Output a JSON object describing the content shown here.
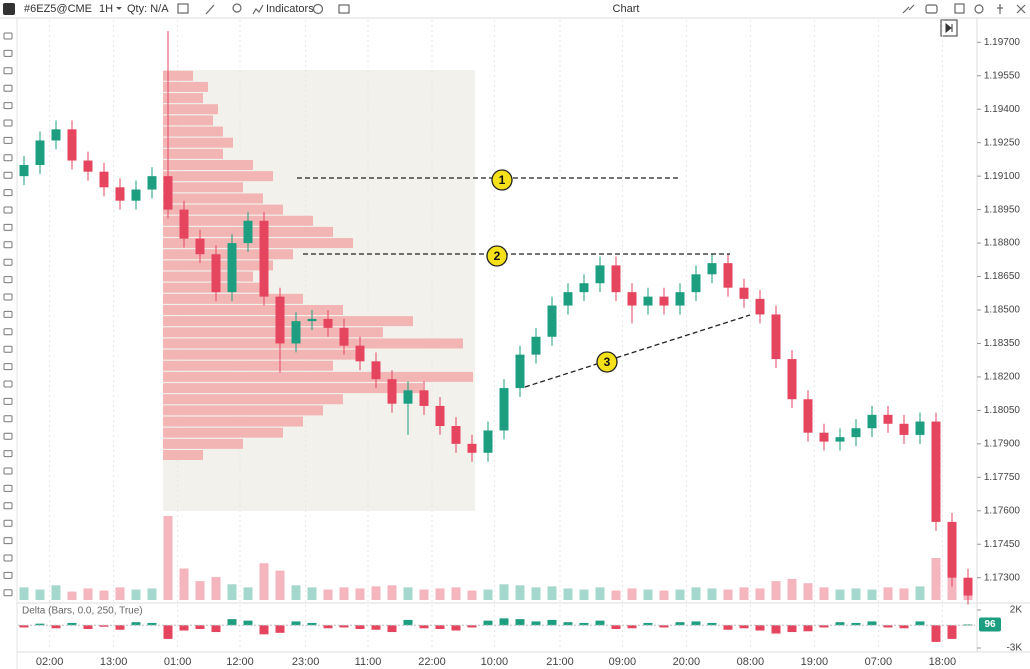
{
  "toolbar": {
    "symbol": "#6EZ5@CME",
    "interval": "1H",
    "qty": "Qty: N/A",
    "indicators": "Indicators",
    "title": "Chart"
  },
  "chart_data": {
    "type": "candlestick",
    "open": [
      1.191,
      1.1915,
      1.1926,
      1.1931,
      1.1917,
      1.1912,
      1.1905,
      1.1899,
      1.1904,
      1.191,
      1.1895,
      1.1882,
      1.1875,
      1.1858,
      1.188,
      1.189,
      1.1856,
      1.1835,
      1.1845,
      1.1846,
      1.1842,
      1.1834,
      1.1827,
      1.1819,
      1.1808,
      1.1814,
      1.1807,
      1.1798,
      1.179,
      1.1786,
      1.1796,
      1.1815,
      1.183,
      1.1838,
      1.1852,
      1.1858,
      1.1862,
      1.187,
      1.1858,
      1.1852,
      1.1856,
      1.1852,
      1.1858,
      1.1866,
      1.1871,
      1.186,
      1.1855,
      1.1848,
      1.1828,
      1.181,
      1.1795,
      1.1791,
      1.1793,
      1.1797,
      1.1803,
      1.1799,
      1.1794,
      1.18,
      1.1755,
      1.173
    ],
    "high": [
      1.1919,
      1.193,
      1.1935,
      1.1935,
      1.1921,
      1.1916,
      1.1909,
      1.1908,
      1.1914,
      1.1975,
      1.1899,
      1.1886,
      1.1879,
      1.1884,
      1.1894,
      1.1894,
      1.186,
      1.1849,
      1.185,
      1.185,
      1.1846,
      1.1838,
      1.1831,
      1.1823,
      1.1818,
      1.1818,
      1.1811,
      1.1802,
      1.1794,
      1.18,
      1.1819,
      1.1834,
      1.1842,
      1.1856,
      1.1862,
      1.1866,
      1.1874,
      1.1874,
      1.1862,
      1.186,
      1.186,
      1.1862,
      1.187,
      1.1875,
      1.1875,
      1.1864,
      1.1859,
      1.1852,
      1.1832,
      1.1814,
      1.1799,
      1.1797,
      1.1801,
      1.1807,
      1.1807,
      1.1803,
      1.1804,
      1.1804,
      1.1759,
      1.1734
    ],
    "low": [
      1.1906,
      1.1911,
      1.1922,
      1.1913,
      1.1908,
      1.1901,
      1.1895,
      1.1895,
      1.19,
      1.1891,
      1.1878,
      1.1871,
      1.1854,
      1.1854,
      1.1876,
      1.1852,
      1.1822,
      1.1831,
      1.1841,
      1.1838,
      1.183,
      1.1823,
      1.1815,
      1.1804,
      1.1794,
      1.1803,
      1.1794,
      1.1786,
      1.1782,
      1.1782,
      1.1792,
      1.1811,
      1.1826,
      1.1834,
      1.1848,
      1.1854,
      1.1858,
      1.1854,
      1.1844,
      1.1848,
      1.1848,
      1.1848,
      1.1854,
      1.1862,
      1.1856,
      1.1851,
      1.1844,
      1.1824,
      1.1806,
      1.1791,
      1.1787,
      1.1787,
      1.1789,
      1.1793,
      1.1795,
      1.179,
      1.179,
      1.1751,
      1.1726,
      1.1718
    ],
    "close": [
      1.1915,
      1.1926,
      1.1931,
      1.1917,
      1.1912,
      1.1905,
      1.1899,
      1.1904,
      1.191,
      1.1895,
      1.1882,
      1.1875,
      1.1858,
      1.188,
      1.189,
      1.1856,
      1.1835,
      1.1845,
      1.1846,
      1.1842,
      1.1834,
      1.1827,
      1.1819,
      1.1808,
      1.1814,
      1.1807,
      1.1798,
      1.179,
      1.1786,
      1.1796,
      1.1815,
      1.183,
      1.1838,
      1.1852,
      1.1858,
      1.1862,
      1.187,
      1.1858,
      1.1852,
      1.1856,
      1.1852,
      1.1858,
      1.1866,
      1.1871,
      1.186,
      1.1855,
      1.1848,
      1.1828,
      1.181,
      1.1795,
      1.1791,
      1.1793,
      1.1797,
      1.1803,
      1.1799,
      1.1794,
      1.18,
      1.1755,
      1.173,
      1.1722
    ],
    "volume": [
      12,
      10,
      14,
      8,
      11,
      9,
      12,
      10,
      11,
      80,
      30,
      18,
      22,
      15,
      12,
      35,
      28,
      14,
      12,
      10,
      12,
      11,
      13,
      14,
      12,
      10,
      11,
      12,
      9,
      10,
      15,
      14,
      12,
      13,
      11,
      10,
      12,
      9,
      11,
      10,
      9,
      10,
      12,
      11,
      10,
      12,
      11,
      18,
      20,
      16,
      12,
      10,
      11,
      10,
      12,
      11,
      13,
      40,
      35,
      20
    ],
    "up_color": "#1e9e80",
    "down_color": "#e5455f",
    "xlim": [
      -0.375,
      59.4375
    ],
    "ylim": [
      1.172,
      1.198
    ],
    "yticks": [
      {
        "value": 1.197,
        "label": "1.19700"
      },
      {
        "value": 1.1955,
        "label": "1.19550"
      },
      {
        "value": 1.194,
        "label": "1.19400"
      },
      {
        "value": 1.1925,
        "label": "1.19250"
      },
      {
        "value": 1.191,
        "label": "1.19100"
      },
      {
        "value": 1.1895,
        "label": "1.18950"
      },
      {
        "value": 1.188,
        "label": "1.18800"
      },
      {
        "value": 1.1865,
        "label": "1.18650"
      },
      {
        "value": 1.185,
        "label": "1.18500"
      },
      {
        "value": 1.1835,
        "label": "1.18350"
      },
      {
        "value": 1.182,
        "label": "1.18200"
      },
      {
        "value": 1.1805,
        "label": "1.18050"
      },
      {
        "value": 1.179,
        "label": "1.17900"
      },
      {
        "value": 1.1775,
        "label": "1.17750"
      },
      {
        "value": 1.176,
        "label": "1.17600"
      },
      {
        "value": 1.1745,
        "label": "1.17450"
      },
      {
        "value": 1.173,
        "label": "1.17300"
      }
    ],
    "xticks": [
      {
        "value": 1.6,
        "label": "02:00"
      },
      {
        "value": 5.6,
        "label": "13:00"
      },
      {
        "value": 9.6,
        "label": "01:00"
      },
      {
        "value": 13.5,
        "label": "12:00"
      },
      {
        "value": 17.6,
        "label": "23:00"
      },
      {
        "value": 21.5,
        "label": "11:00"
      },
      {
        "value": 25.5,
        "label": "22:00"
      },
      {
        "value": 29.4,
        "label": "10:00"
      },
      {
        "value": 33.5,
        "label": "21:00"
      },
      {
        "value": 37.4,
        "label": "09:00"
      },
      {
        "value": 41.4,
        "label": "20:00"
      },
      {
        "value": 45.4,
        "label": "08:00"
      },
      {
        "value": 49.4,
        "label": "19:00"
      },
      {
        "value": 53.4,
        "label": "07:00"
      },
      {
        "value": 57.4,
        "label": "18:00"
      }
    ],
    "volume_profile": {
      "color": "#f2aaaa",
      "prices": [
        1.1955,
        1.195,
        1.1945,
        1.194,
        1.1935,
        1.193,
        1.1925,
        1.192,
        1.1915,
        1.191,
        1.1905,
        1.19,
        1.1895,
        1.189,
        1.1885,
        1.188,
        1.1875,
        1.187,
        1.1865,
        1.186,
        1.1855,
        1.185,
        1.1845,
        1.184,
        1.1835,
        1.183,
        1.1825,
        1.182,
        1.1815,
        1.181,
        1.1805,
        1.18,
        1.1795,
        1.179,
        1.1785
      ],
      "values": [
        30,
        45,
        40,
        55,
        50,
        60,
        70,
        60,
        90,
        110,
        80,
        100,
        120,
        150,
        170,
        190,
        130,
        110,
        90,
        100,
        140,
        180,
        250,
        220,
        300,
        200,
        170,
        310,
        260,
        180,
        160,
        140,
        120,
        80,
        40
      ]
    },
    "annotations": [
      "1",
      "2",
      "3"
    ],
    "delta": {
      "label": "Delta (Bars, 0.0, 250, True)",
      "values": [
        -300,
        200,
        -400,
        300,
        -500,
        -200,
        -600,
        400,
        300,
        -1800,
        -700,
        -500,
        -900,
        800,
        600,
        -1200,
        -1000,
        500,
        300,
        -400,
        -300,
        -500,
        -600,
        -900,
        700,
        -400,
        -500,
        -700,
        -300,
        600,
        900,
        800,
        500,
        700,
        400,
        300,
        600,
        -500,
        -400,
        300,
        -300,
        400,
        500,
        300,
        -600,
        -400,
        -700,
        -1100,
        -900,
        -800,
        -300,
        400,
        300,
        500,
        -300,
        -400,
        500,
        -2200,
        -1800,
        96
      ],
      "ylim": [
        -3000,
        2000
      ],
      "yticks": [
        {
          "value": 2000,
          "label": "2K"
        },
        {
          "value": -3000,
          "label": "-3K"
        }
      ]
    }
  }
}
